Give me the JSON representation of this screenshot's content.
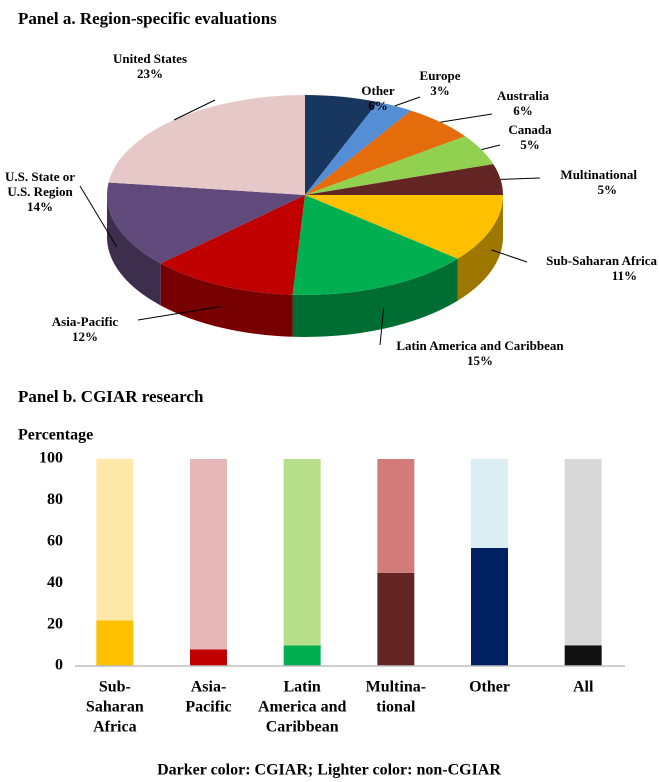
{
  "chart_data": [
    {
      "type": "pie3d",
      "title": "Panel a. Region-specific evaluations",
      "categories": [
        [
          "Other"
        ],
        [
          "Europe"
        ],
        [
          "Australia"
        ],
        [
          "Canada"
        ],
        [
          "Multinational"
        ],
        [
          "Sub-Saharan Africa"
        ],
        [
          "Latin America and Caribbean"
        ],
        [
          "Asia-Pacific"
        ],
        [
          "U.S. State or",
          "U.S. Region"
        ],
        [
          "United States"
        ]
      ],
      "values": [
        6,
        3,
        6,
        5,
        5,
        11,
        15,
        12,
        14,
        23
      ],
      "value_labels": [
        "6%",
        "3%",
        "6%",
        "5%",
        "5%",
        "11%",
        "15%",
        "12%",
        "14%",
        "23%"
      ],
      "colors": [
        "#17375e",
        "#558ed5",
        "#e46c0a",
        "#92d050",
        "#632523",
        "#ffc000",
        "#00b050",
        "#c00000",
        "#604a7b",
        "#e6c8c8"
      ]
    },
    {
      "type": "stacked_bar",
      "title": "Panel b. CGIAR research",
      "ylabel": "Percentage",
      "categories": [
        [
          "Sub-",
          "Saharan",
          "Africa"
        ],
        [
          "Asia-",
          "Pacific"
        ],
        [
          "Latin",
          "America and",
          "Caribbean"
        ],
        [
          "Multina-",
          "tional"
        ],
        [
          "Other"
        ],
        [
          "All"
        ]
      ],
      "series": [
        {
          "colors": [
            "#ffc000",
            "#c00000",
            "#00b050",
            "#632523",
            "#002060",
            "#111111"
          ],
          "values": [
            22,
            8,
            10,
            45,
            57,
            10
          ]
        },
        {
          "colors": [
            "#ffe9a8",
            "#e6b9b8",
            "#b8e08a",
            "#d37b78",
            "#daeef3",
            "#d9d9d9"
          ],
          "values": [
            78,
            92,
            90,
            55,
            43,
            90
          ]
        }
      ],
      "ylim": [
        0,
        100
      ],
      "yticks": [
        0,
        20,
        40,
        60,
        80,
        100
      ],
      "note": "Darker color: CGIAR; Lighter color: non-CGIAR"
    }
  ]
}
